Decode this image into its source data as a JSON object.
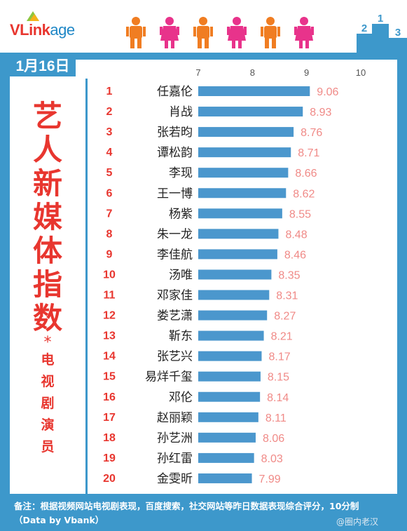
{
  "header": {
    "logo_main": "VLink",
    "logo_sub": "age"
  },
  "date": "1月16日",
  "vertical_title": {
    "big": [
      "艺",
      "人",
      "新",
      "媒",
      "体",
      "指",
      "数"
    ],
    "star": "*",
    "small": [
      "电",
      "视",
      "剧",
      "演",
      "员"
    ]
  },
  "footer": {
    "note": "备注：根据视频网站电视剧表现，百度搜索，社交网站等昨日数据表现综合评分，10分制",
    "source": "（Data by Vbank）",
    "watermark": "@圈内老汉"
  },
  "colors": {
    "frame": "#3d98cb",
    "bar": "#4b97cd",
    "rank": "#e8362f",
    "value": "#f08a87",
    "title": "#e8362f"
  },
  "chart_data": {
    "type": "bar",
    "orientation": "horizontal",
    "xlim": [
      7,
      10
    ],
    "x_ticks": [
      "7",
      "8",
      "9",
      "10"
    ],
    "grid": false,
    "ranks": [
      "1",
      "2",
      "3",
      "4",
      "5",
      "6",
      "7",
      "8",
      "9",
      "10",
      "11",
      "12",
      "13",
      "14",
      "15",
      "16",
      "17",
      "18",
      "19",
      "20"
    ],
    "categories": [
      "任嘉伦",
      "肖战",
      "张若昀",
      "谭松韵",
      "李现",
      "王一博",
      "杨紫",
      "朱一龙",
      "李佳航",
      "汤唯",
      "邓家佳",
      "娄艺潇",
      "靳东",
      "张艺兴",
      "易烊千玺",
      "邓伦",
      "赵丽颖",
      "孙艺洲",
      "孙红雷",
      "金雯昕"
    ],
    "values": [
      9.06,
      8.93,
      8.76,
      8.71,
      8.66,
      8.62,
      8.55,
      8.48,
      8.46,
      8.35,
      8.31,
      8.27,
      8.21,
      8.17,
      8.15,
      8.14,
      8.11,
      8.06,
      8.03,
      7.99
    ],
    "value_labels": [
      "9.06",
      "8.93",
      "8.76",
      "8.71",
      "8.66",
      "8.62",
      "8.55",
      "8.48",
      "8.46",
      "8.35",
      "8.31",
      "8.27",
      "8.21",
      "8.17",
      "8.15",
      "8.14",
      "8.11",
      "8.06",
      "8.03",
      "7.99"
    ]
  }
}
